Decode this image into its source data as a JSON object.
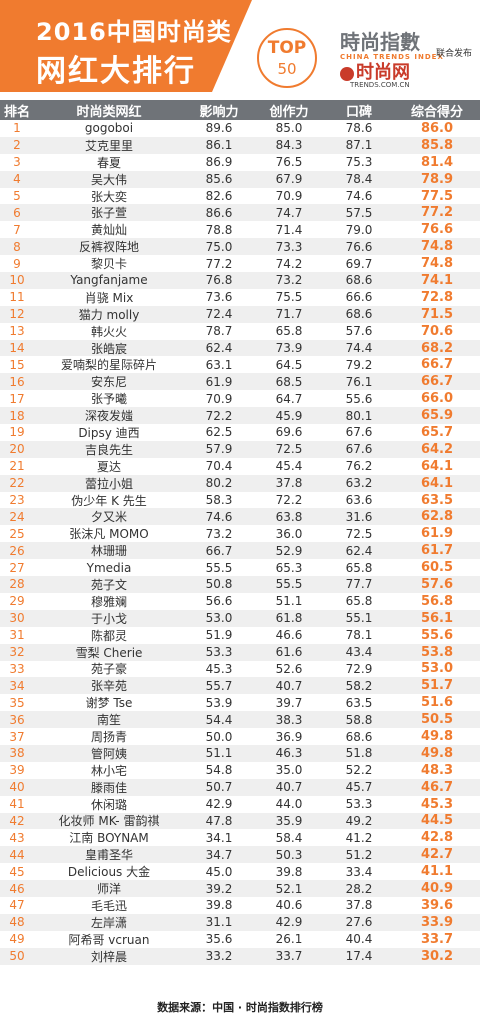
{
  "header": {
    "title_line1": "2016中国时尚类",
    "title_line2": "网红大排行",
    "top_label": "TOP",
    "top_number": "50",
    "partner1_name": "時尚指數",
    "partner1_sub": "CHINA TRENDS INDEX",
    "partner2_name": "时尚网",
    "partner2_sub": "TRENDS.COM.CN",
    "joint_release": "联合发布"
  },
  "columns": [
    "排名",
    "时尚类网红",
    "影响力",
    "创作力",
    "口碑",
    "综合得分"
  ],
  "rows": [
    {
      "rank": "1",
      "name": "gogoboi",
      "influence": "89.6",
      "creativity": "85.0",
      "reputation": "78.6",
      "score": "86.0"
    },
    {
      "rank": "2",
      "name": "艾克里里",
      "influence": "86.1",
      "creativity": "84.3",
      "reputation": "87.1",
      "score": "85.8"
    },
    {
      "rank": "3",
      "name": "春夏",
      "influence": "86.9",
      "creativity": "76.5",
      "reputation": "75.3",
      "score": "81.4"
    },
    {
      "rank": "4",
      "name": "吴大伟",
      "influence": "85.6",
      "creativity": "67.9",
      "reputation": "78.4",
      "score": "78.9"
    },
    {
      "rank": "5",
      "name": "张大奕",
      "influence": "82.6",
      "creativity": "70.9",
      "reputation": "74.6",
      "score": "77.5"
    },
    {
      "rank": "6",
      "name": "张子萱",
      "influence": "86.6",
      "creativity": "74.7",
      "reputation": "57.5",
      "score": "77.2"
    },
    {
      "rank": "7",
      "name": "黄灿灿",
      "influence": "78.8",
      "creativity": "71.4",
      "reputation": "79.0",
      "score": "76.6"
    },
    {
      "rank": "8",
      "name": "反裤衩阵地",
      "influence": "75.0",
      "creativity": "73.3",
      "reputation": "76.6",
      "score": "74.8"
    },
    {
      "rank": "9",
      "name": "黎贝卡",
      "influence": "77.2",
      "creativity": "74.2",
      "reputation": "69.7",
      "score": "74.8"
    },
    {
      "rank": "10",
      "name": "Yangfanjame",
      "influence": "76.8",
      "creativity": "73.2",
      "reputation": "68.6",
      "score": "74.1"
    },
    {
      "rank": "11",
      "name": "肖骁 Mix",
      "influence": "73.6",
      "creativity": "75.5",
      "reputation": "66.6",
      "score": "72.8"
    },
    {
      "rank": "12",
      "name": "猫力 molly",
      "influence": "72.4",
      "creativity": "71.7",
      "reputation": "68.6",
      "score": "71.5"
    },
    {
      "rank": "13",
      "name": "韩火火",
      "influence": "78.7",
      "creativity": "65.8",
      "reputation": "57.6",
      "score": "70.6"
    },
    {
      "rank": "14",
      "name": "张皓宸",
      "influence": "62.4",
      "creativity": "73.9",
      "reputation": "74.4",
      "score": "68.2"
    },
    {
      "rank": "15",
      "name": "爱喃梨的星际碎片",
      "influence": "63.1",
      "creativity": "64.5",
      "reputation": "79.2",
      "score": "66.7"
    },
    {
      "rank": "16",
      "name": "安东尼",
      "influence": "61.9",
      "creativity": "68.5",
      "reputation": "76.1",
      "score": "66.7"
    },
    {
      "rank": "17",
      "name": "张予曦",
      "influence": "70.9",
      "creativity": "64.7",
      "reputation": "55.6",
      "score": "66.0"
    },
    {
      "rank": "18",
      "name": "深夜发媸",
      "influence": "72.2",
      "creativity": "45.9",
      "reputation": "80.1",
      "score": "65.9"
    },
    {
      "rank": "19",
      "name": "Dipsy 迪西",
      "influence": "62.5",
      "creativity": "69.6",
      "reputation": "67.6",
      "score": "65.7"
    },
    {
      "rank": "20",
      "name": "吉良先生",
      "influence": "57.9",
      "creativity": "72.5",
      "reputation": "67.6",
      "score": "64.2"
    },
    {
      "rank": "21",
      "name": "夏达",
      "influence": "70.4",
      "creativity": "45.4",
      "reputation": "76.2",
      "score": "64.1"
    },
    {
      "rank": "22",
      "name": "蕾拉小姐",
      "influence": "80.2",
      "creativity": "37.8",
      "reputation": "63.2",
      "score": "64.1"
    },
    {
      "rank": "23",
      "name": "伪少年 K 先生",
      "influence": "58.3",
      "creativity": "72.2",
      "reputation": "63.6",
      "score": "63.5"
    },
    {
      "rank": "24",
      "name": "夕又米",
      "influence": "74.6",
      "creativity": "63.8",
      "reputation": "31.6",
      "score": "62.8"
    },
    {
      "rank": "25",
      "name": "张沫凡 MOMO",
      "influence": "73.2",
      "creativity": "36.0",
      "reputation": "72.5",
      "score": "61.9"
    },
    {
      "rank": "26",
      "name": "林珊珊",
      "influence": "66.7",
      "creativity": "52.9",
      "reputation": "62.4",
      "score": "61.7"
    },
    {
      "rank": "27",
      "name": "Ymedia",
      "influence": "55.5",
      "creativity": "65.3",
      "reputation": "65.8",
      "score": "60.5"
    },
    {
      "rank": "28",
      "name": "苑子文",
      "influence": "50.8",
      "creativity": "55.5",
      "reputation": "77.7",
      "score": "57.6"
    },
    {
      "rank": "29",
      "name": "穆雅斓",
      "influence": "56.6",
      "creativity": "51.1",
      "reputation": "65.8",
      "score": "56.8"
    },
    {
      "rank": "30",
      "name": "于小戈",
      "influence": "53.0",
      "creativity": "61.8",
      "reputation": "55.1",
      "score": "56.1"
    },
    {
      "rank": "31",
      "name": "陈都灵",
      "influence": "51.9",
      "creativity": "46.6",
      "reputation": "78.1",
      "score": "55.6"
    },
    {
      "rank": "32",
      "name": "雪梨 Cherie",
      "influence": "53.3",
      "creativity": "61.6",
      "reputation": "43.4",
      "score": "53.8"
    },
    {
      "rank": "33",
      "name": "苑子豪",
      "influence": "45.3",
      "creativity": "52.6",
      "reputation": "72.9",
      "score": "53.0"
    },
    {
      "rank": "34",
      "name": "张辛苑",
      "influence": "55.7",
      "creativity": "40.7",
      "reputation": "58.2",
      "score": "51.7"
    },
    {
      "rank": "35",
      "name": "谢梦 Tse",
      "influence": "53.9",
      "creativity": "39.7",
      "reputation": "63.5",
      "score": "51.6"
    },
    {
      "rank": "36",
      "name": "南笙",
      "influence": "54.4",
      "creativity": "38.3",
      "reputation": "58.8",
      "score": "50.5"
    },
    {
      "rank": "37",
      "name": "周扬青",
      "influence": "50.0",
      "creativity": "36.9",
      "reputation": "68.6",
      "score": "49.8"
    },
    {
      "rank": "38",
      "name": "管阿姨",
      "influence": "51.1",
      "creativity": "46.3",
      "reputation": "51.8",
      "score": "49.8"
    },
    {
      "rank": "39",
      "name": "林小宅",
      "influence": "54.8",
      "creativity": "35.0",
      "reputation": "52.2",
      "score": "48.3"
    },
    {
      "rank": "40",
      "name": "滕雨佳",
      "influence": "50.7",
      "creativity": "40.7",
      "reputation": "45.7",
      "score": "46.7"
    },
    {
      "rank": "41",
      "name": "休闲璐",
      "influence": "42.9",
      "creativity": "44.0",
      "reputation": "53.3",
      "score": "45.3"
    },
    {
      "rank": "42",
      "name": "化妆师 MK- 雷韵祺",
      "influence": "47.8",
      "creativity": "35.9",
      "reputation": "49.2",
      "score": "44.5"
    },
    {
      "rank": "43",
      "name": "江南 BOYNAM",
      "influence": "34.1",
      "creativity": "58.4",
      "reputation": "41.2",
      "score": "42.8"
    },
    {
      "rank": "44",
      "name": "皇甫圣华",
      "influence": "34.7",
      "creativity": "50.3",
      "reputation": "51.2",
      "score": "42.7"
    },
    {
      "rank": "45",
      "name": "Delicious 大金",
      "influence": "45.0",
      "creativity": "39.8",
      "reputation": "33.4",
      "score": "41.1"
    },
    {
      "rank": "46",
      "name": "师洋",
      "influence": "39.2",
      "creativity": "52.1",
      "reputation": "28.2",
      "score": "40.9"
    },
    {
      "rank": "47",
      "name": "毛毛迅",
      "influence": "39.8",
      "creativity": "40.6",
      "reputation": "37.8",
      "score": "39.6"
    },
    {
      "rank": "48",
      "name": "左岸潇",
      "influence": "31.1",
      "creativity": "42.9",
      "reputation": "27.6",
      "score": "33.9"
    },
    {
      "rank": "49",
      "name": "阿希哥 vcruan",
      "influence": "35.6",
      "creativity": "26.1",
      "reputation": "40.4",
      "score": "33.7"
    },
    {
      "rank": "50",
      "name": "刘梓晨",
      "influence": "33.2",
      "creativity": "33.7",
      "reputation": "17.4",
      "score": "30.2"
    }
  ],
  "footer": {
    "source": "数据来源：中国 · 时尚指数排行榜"
  },
  "colors": {
    "accent": "#f07b2f",
    "header_bg": "#6f7378",
    "stripe": "#efefef"
  }
}
